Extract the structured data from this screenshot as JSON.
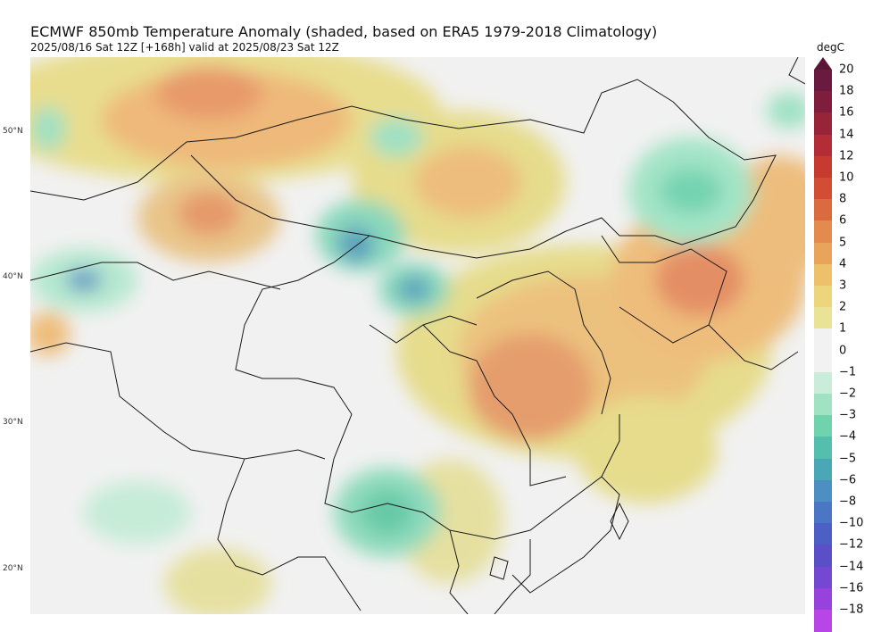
{
  "header": {
    "title": "ECMWF 850mb Temperature Anomaly (shaded, based on ERA5 1979-2018 Climatology)",
    "subtitle": "2025/08/16 Sat 12Z [+168h] valid at 2025/08/23 Sat 12Z"
  },
  "map": {
    "lat_labels": [
      "50°N",
      "40°N",
      "30°N",
      "20°N"
    ]
  },
  "colorbar": {
    "unit": "degC",
    "labels": [
      "20",
      "18",
      "16",
      "14",
      "12",
      "10",
      "8",
      "6",
      "5",
      "4",
      "3",
      "2",
      "1",
      "0",
      "−1",
      "−2",
      "−3",
      "−4",
      "−5",
      "−6",
      "−8",
      "−10",
      "−12",
      "−14",
      "−16",
      "−18"
    ],
    "colors": [
      "#6a1a3f",
      "#7e1e3c",
      "#98243a",
      "#b32d36",
      "#c63a30",
      "#d24d33",
      "#dc6a3f",
      "#e48a4f",
      "#eaa35b",
      "#eec06a",
      "#ecd57a",
      "#e9e396",
      "#f2f2f2",
      "#f2f2f2",
      "#c9edd8",
      "#9fe3c3",
      "#6fd3ad",
      "#55bfae",
      "#4aa7b5",
      "#4d8ec3",
      "#4a76c5",
      "#4d5ec4",
      "#5a4fc7",
      "#7448d0",
      "#9742dc",
      "#b845e6"
    ]
  }
}
